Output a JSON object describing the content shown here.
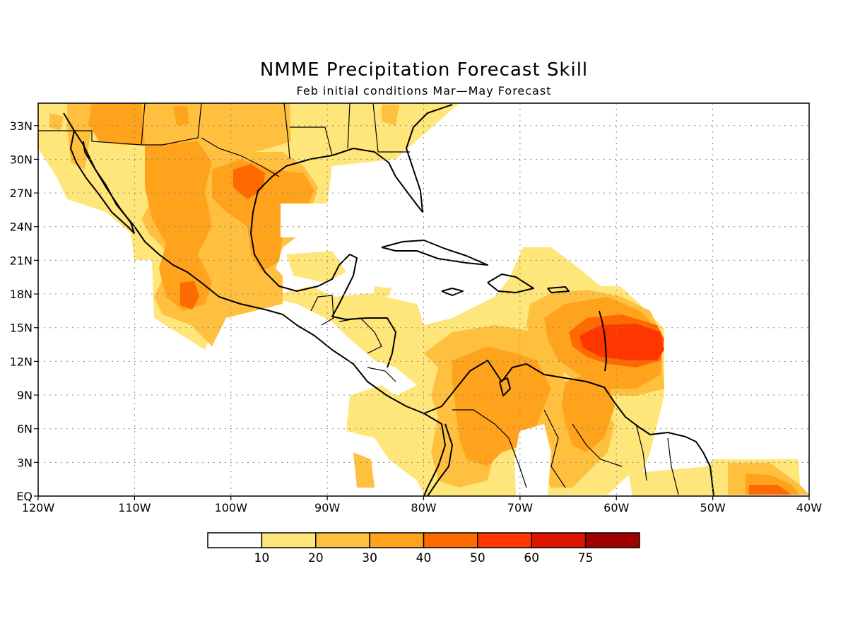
{
  "title": "NMME Precipitation Forecast Skill",
  "subtitle": "Feb initial conditions  Mar—May Forecast",
  "map": {
    "lon_range": [
      -120,
      -40
    ],
    "lat_range": [
      0,
      35
    ],
    "x_ticks": [
      "120W",
      "110W",
      "100W",
      "90W",
      "80W",
      "70W",
      "60W",
      "50W",
      "40W"
    ],
    "y_ticks": [
      "EQ",
      "3N",
      "6N",
      "9N",
      "12N",
      "15N",
      "18N",
      "21N",
      "24N",
      "27N",
      "30N",
      "33N"
    ],
    "grid": "dotted"
  },
  "legend": {
    "colors": [
      "#ffffff",
      "#ffe67a",
      "#ffc040",
      "#ffa21c",
      "#ff6a00",
      "#ff3600",
      "#dd1500",
      "#a00000"
    ],
    "labels": [
      "10",
      "20",
      "30",
      "40",
      "50",
      "60",
      "75"
    ]
  }
}
